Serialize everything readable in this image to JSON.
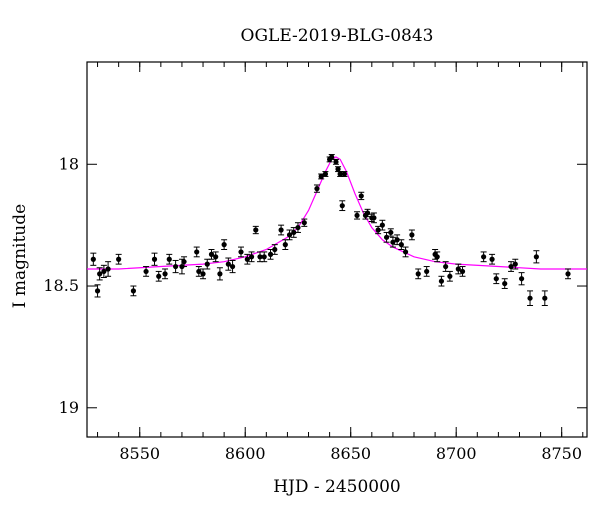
{
  "chart_data": {
    "type": "scatter",
    "title": "OGLE-2019-BLG-0843",
    "xlabel": "HJD - 2450000",
    "ylabel": "I magnitude",
    "xlim": [
      8525,
      8762
    ],
    "ylim": [
      19.12,
      17.58
    ],
    "y_inverted": true,
    "xticks": [
      8550,
      8600,
      8650,
      8700,
      8750
    ],
    "xtick_labels": [
      "8550",
      "8600",
      "8650",
      "8700",
      "8750"
    ],
    "yticks": [
      18,
      18.5,
      19
    ],
    "ytick_labels": [
      "18",
      "18.5",
      "19"
    ],
    "grid": false,
    "colors": {
      "points": "#000000",
      "model": "#ff00ff"
    },
    "model_curve": {
      "name": "",
      "x": [
        8525,
        8540,
        8560,
        8580,
        8590,
        8600,
        8610,
        8620,
        8625,
        8630,
        8634,
        8638,
        8641,
        8643,
        8645,
        8648,
        8652,
        8656,
        8660,
        8665,
        8670,
        8680,
        8690,
        8700,
        8720,
        8740,
        8762
      ],
      "y": [
        18.43,
        18.43,
        18.42,
        18.41,
        18.4,
        18.38,
        18.35,
        18.3,
        18.26,
        18.19,
        18.11,
        18.03,
        17.98,
        17.97,
        17.98,
        18.03,
        18.12,
        18.2,
        18.26,
        18.31,
        18.34,
        18.38,
        18.4,
        18.41,
        18.42,
        18.43,
        18.43
      ]
    },
    "series": [
      {
        "name": "",
        "x": [
          8528,
          8530,
          8531,
          8533,
          8535,
          8540,
          8547,
          8553,
          8557,
          8559,
          8562,
          8564,
          8567,
          8570,
          8571,
          8577,
          8578,
          8580,
          8582,
          8584,
          8586,
          8588,
          8590,
          8592,
          8594,
          8598,
          8601,
          8603,
          8605,
          8607,
          8609,
          8612,
          8614,
          8617,
          8619,
          8621,
          8623,
          8625,
          8628,
          8634,
          8636,
          8638,
          8640,
          8641,
          8643,
          8644,
          8645,
          8646,
          8647,
          8653,
          8655,
          8657,
          8658,
          8660,
          8661,
          8663,
          8665,
          8667,
          8669,
          8670,
          8672,
          8674,
          8676,
          8679,
          8682,
          8686,
          8690,
          8691,
          8693,
          8695,
          8697,
          8701,
          8703,
          8713,
          8717,
          8719,
          8723,
          8726,
          8728,
          8731,
          8735,
          8738,
          8742,
          8753
        ],
        "y": [
          18.39,
          18.52,
          18.45,
          18.44,
          18.43,
          18.39,
          18.52,
          18.44,
          18.39,
          18.46,
          18.45,
          18.39,
          18.42,
          18.42,
          18.4,
          18.36,
          18.44,
          18.45,
          18.41,
          18.37,
          18.38,
          18.45,
          18.33,
          18.41,
          18.42,
          18.36,
          18.39,
          18.38,
          18.27,
          18.38,
          18.38,
          18.37,
          18.35,
          18.27,
          18.33,
          18.29,
          18.28,
          18.26,
          18.24,
          18.1,
          18.05,
          18.04,
          17.98,
          17.97,
          17.99,
          18.02,
          18.04,
          18.17,
          18.04,
          18.21,
          18.13,
          18.21,
          18.2,
          18.22,
          18.22,
          18.27,
          18.25,
          18.3,
          18.28,
          18.32,
          18.31,
          18.33,
          18.36,
          18.29,
          18.45,
          18.44,
          18.37,
          18.38,
          18.48,
          18.42,
          18.46,
          18.43,
          18.44,
          18.38,
          18.39,
          18.47,
          18.49,
          18.42,
          18.41,
          18.47,
          18.55,
          18.38,
          18.55,
          18.45
        ],
        "err": [
          0.025,
          0.025,
          0.025,
          0.025,
          0.03,
          0.02,
          0.02,
          0.02,
          0.025,
          0.02,
          0.02,
          0.02,
          0.025,
          0.03,
          0.02,
          0.02,
          0.02,
          0.02,
          0.02,
          0.02,
          0.02,
          0.025,
          0.02,
          0.025,
          0.025,
          0.02,
          0.02,
          0.02,
          0.015,
          0.02,
          0.02,
          0.02,
          0.02,
          0.02,
          0.02,
          0.02,
          0.02,
          0.02,
          0.015,
          0.015,
          0.01,
          0.01,
          0.01,
          0.01,
          0.01,
          0.01,
          0.01,
          0.02,
          0.01,
          0.015,
          0.015,
          0.015,
          0.015,
          0.015,
          0.02,
          0.015,
          0.02,
          0.02,
          0.015,
          0.02,
          0.02,
          0.02,
          0.02,
          0.02,
          0.02,
          0.02,
          0.02,
          0.02,
          0.02,
          0.02,
          0.02,
          0.02,
          0.02,
          0.02,
          0.02,
          0.02,
          0.02,
          0.02,
          0.02,
          0.025,
          0.03,
          0.025,
          0.03,
          0.02
        ]
      }
    ]
  }
}
